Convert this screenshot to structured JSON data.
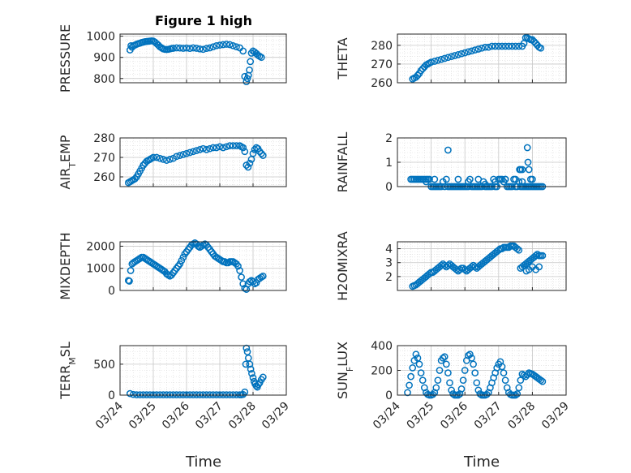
{
  "figure": {
    "title": "Figure 1 high",
    "marker_color": "#0072BD",
    "xticks": [
      "03/24",
      "03/25",
      "03/26",
      "03/27",
      "03/28",
      "03/29"
    ],
    "xlabel": "Time"
  },
  "chart_data": [
    {
      "type": "scatter",
      "ylabel_main": "PRESSURE",
      "ylabel_sub": "",
      "xlim": [
        0,
        5
      ],
      "ylim": [
        780,
        1010
      ],
      "yticks": [
        800,
        900,
        1000
      ],
      "x": [
        0.3,
        0.33,
        0.36,
        0.4,
        0.45,
        0.5,
        0.55,
        0.6,
        0.65,
        0.7,
        0.75,
        0.8,
        0.85,
        0.9,
        0.95,
        1.0,
        1.05,
        1.1,
        1.15,
        1.2,
        1.25,
        1.3,
        1.35,
        1.4,
        1.45,
        1.5,
        1.55,
        1.6,
        1.7,
        1.8,
        1.9,
        2.0,
        2.1,
        2.2,
        2.3,
        2.4,
        2.5,
        2.6,
        2.7,
        2.8,
        2.9,
        3.0,
        3.1,
        3.2,
        3.3,
        3.4,
        3.5,
        3.6,
        3.7,
        3.75,
        3.8,
        3.83,
        3.86,
        3.89,
        3.92,
        3.95,
        4.0,
        4.05,
        4.1,
        4.15,
        4.2,
        4.25
      ],
      "y": [
        935,
        955,
        948,
        955,
        958,
        962,
        965,
        967,
        970,
        972,
        974,
        975,
        976,
        977,
        978,
        977,
        972,
        965,
        958,
        950,
        945,
        940,
        938,
        937,
        938,
        940,
        942,
        943,
        945,
        944,
        943,
        944,
        942,
        945,
        943,
        940,
        938,
        942,
        945,
        950,
        955,
        958,
        960,
        962,
        960,
        955,
        950,
        945,
        930,
        810,
        785,
        800,
        815,
        840,
        880,
        920,
        930,
        925,
        918,
        910,
        905,
        900
      ]
    },
    {
      "type": "scatter",
      "ylabel_main": "THETA",
      "ylabel_sub": "",
      "xlim": [
        0,
        5
      ],
      "ylim": [
        260,
        286
      ],
      "yticks": [
        260,
        270,
        280
      ],
      "x": [
        0.45,
        0.5,
        0.55,
        0.6,
        0.65,
        0.7,
        0.75,
        0.8,
        0.85,
        0.9,
        0.95,
        1.0,
        1.1,
        1.2,
        1.3,
        1.4,
        1.5,
        1.6,
        1.7,
        1.8,
        1.9,
        2.0,
        2.1,
        2.2,
        2.3,
        2.4,
        2.5,
        2.6,
        2.7,
        2.8,
        2.9,
        3.0,
        3.1,
        3.2,
        3.3,
        3.4,
        3.5,
        3.6,
        3.7,
        3.75,
        3.8,
        3.85,
        3.9,
        3.95,
        4.0,
        4.05,
        4.1,
        4.15,
        4.2,
        4.25
      ],
      "y": [
        262,
        262.5,
        263,
        264,
        265,
        266.5,
        267.5,
        268.5,
        269.5,
        270,
        270.5,
        271,
        271.5,
        272,
        272.5,
        273,
        273.5,
        274,
        274.5,
        275,
        275.5,
        276,
        276.5,
        277,
        277.5,
        278,
        278.5,
        279,
        279,
        279.5,
        279.5,
        279.5,
        279.5,
        279.5,
        279.5,
        279.5,
        279.5,
        279.5,
        279.5,
        281,
        284,
        284,
        283.5,
        283,
        283,
        282,
        281,
        280,
        279,
        278.5
      ]
    },
    {
      "type": "scatter",
      "ylabel_main": "AIR",
      "ylabel_sub": "T",
      "ylabel_rest": "EMP",
      "xlim": [
        0,
        5
      ],
      "ylim": [
        255,
        280
      ],
      "yticks": [
        260,
        270,
        280
      ],
      "x": [
        0.25,
        0.3,
        0.35,
        0.4,
        0.45,
        0.5,
        0.55,
        0.6,
        0.65,
        0.7,
        0.75,
        0.8,
        0.85,
        0.9,
        0.95,
        1.0,
        1.1,
        1.2,
        1.3,
        1.4,
        1.5,
        1.6,
        1.7,
        1.8,
        1.9,
        2.0,
        2.1,
        2.2,
        2.3,
        2.4,
        2.5,
        2.6,
        2.7,
        2.8,
        2.9,
        3.0,
        3.1,
        3.2,
        3.3,
        3.4,
        3.5,
        3.6,
        3.65,
        3.7,
        3.75,
        3.8,
        3.85,
        3.9,
        3.95,
        4.0,
        4.05,
        4.1,
        4.15,
        4.2,
        4.25,
        4.3
      ],
      "y": [
        257,
        257.5,
        258,
        258.5,
        259,
        260,
        261.5,
        263,
        264.5,
        266,
        267,
        268,
        268.5,
        269,
        269.5,
        270,
        270,
        269.5,
        269,
        268.5,
        269,
        269.5,
        270.5,
        271,
        271.5,
        272,
        272.5,
        273,
        273.5,
        274,
        274.5,
        274,
        274.5,
        275,
        275,
        275.5,
        275,
        275.5,
        276,
        276,
        276,
        276,
        275.5,
        275,
        273,
        266,
        265,
        267,
        269,
        272,
        274,
        275,
        274.5,
        273,
        272,
        271
      ]
    },
    {
      "type": "scatter",
      "ylabel_main": "RAINFALL",
      "ylabel_sub": "",
      "xlim": [
        0,
        5
      ],
      "ylim": [
        0,
        2
      ],
      "yticks": [
        0,
        1,
        2
      ],
      "x": [
        0.4,
        0.45,
        0.5,
        0.55,
        0.6,
        0.65,
        0.7,
        0.75,
        0.8,
        0.85,
        0.9,
        0.95,
        1.0,
        1.05,
        1.1,
        1.15,
        1.2,
        1.25,
        1.3,
        1.35,
        1.4,
        1.45,
        1.5,
        1.55,
        1.6,
        1.65,
        1.7,
        1.75,
        1.8,
        1.85,
        1.9,
        1.95,
        2.0,
        2.05,
        2.1,
        2.15,
        2.2,
        2.25,
        2.3,
        2.35,
        2.4,
        2.45,
        2.5,
        2.55,
        2.6,
        2.65,
        2.7,
        2.75,
        2.8,
        2.85,
        2.9,
        2.95,
        3.0,
        3.05,
        3.1,
        3.15,
        3.2,
        3.25,
        3.3,
        3.35,
        3.4,
        3.45,
        3.5,
        3.55,
        3.6,
        3.65,
        3.7,
        3.75,
        3.8,
        3.85,
        3.9,
        3.95,
        4.0,
        4.05,
        4.1,
        4.15,
        4.2,
        4.25,
        4.3,
        0.85,
        1.1,
        1.5,
        1.8,
        2.1,
        2.4,
        2.6,
        2.9,
        3.2,
        3.5,
        3.7,
        3.62,
        3.65,
        3.7,
        3.85,
        3.87,
        3.9,
        3.95,
        4.0
      ],
      "y": [
        0.3,
        0.3,
        0.3,
        0.3,
        0.3,
        0.3,
        0.3,
        0.3,
        0.3,
        0.3,
        0.3,
        0.3,
        0,
        0,
        0,
        0,
        0,
        0,
        0,
        0.2,
        0,
        0.3,
        0,
        0,
        0,
        0,
        0,
        0,
        0,
        0,
        0,
        0,
        0,
        0,
        0,
        0.3,
        0,
        0,
        0,
        0,
        0,
        0,
        0,
        0.2,
        0,
        0,
        0,
        0,
        0,
        0.3,
        0,
        0,
        0.3,
        0.3,
        0.3,
        0.2,
        0.3,
        0,
        0,
        0,
        0,
        0.3,
        0,
        0,
        0.2,
        0,
        0,
        0,
        0,
        0,
        0,
        0,
        0,
        0,
        0,
        0,
        0,
        0,
        0,
        0.2,
        0.3,
        1.5,
        0.3,
        0.2,
        0.3,
        0.1,
        0.2,
        0.3,
        0.3,
        0.2,
        0.7,
        0.7,
        0.7,
        1.6,
        1.0,
        0.7,
        0.3,
        0.3
      ]
    },
    {
      "type": "scatter",
      "ylabel_main": "MIXDEPTH",
      "ylabel_sub": "",
      "xlim": [
        0,
        5
      ],
      "ylim": [
        0,
        2200
      ],
      "yticks": [
        0,
        1000,
        2000
      ],
      "x": [
        0.25,
        0.28,
        0.32,
        0.36,
        0.4,
        0.45,
        0.5,
        0.55,
        0.6,
        0.65,
        0.7,
        0.75,
        0.8,
        0.85,
        0.9,
        0.95,
        1.0,
        1.05,
        1.1,
        1.15,
        1.2,
        1.25,
        1.3,
        1.35,
        1.4,
        1.45,
        1.5,
        1.55,
        1.6,
        1.65,
        1.7,
        1.75,
        1.8,
        1.85,
        1.9,
        1.95,
        2.0,
        2.05,
        2.1,
        2.15,
        2.2,
        2.25,
        2.3,
        2.35,
        2.4,
        2.45,
        2.5,
        2.55,
        2.6,
        2.65,
        2.7,
        2.75,
        2.8,
        2.85,
        2.9,
        2.95,
        3.0,
        3.05,
        3.1,
        3.15,
        3.2,
        3.25,
        3.3,
        3.35,
        3.4,
        3.45,
        3.5,
        3.55,
        3.6,
        3.65,
        3.7,
        3.75,
        3.8,
        3.85,
        3.9,
        3.95,
        4.0,
        4.05,
        4.1,
        4.15,
        4.2,
        4.25,
        4.3
      ],
      "y": [
        450,
        420,
        900,
        1200,
        1250,
        1300,
        1350,
        1400,
        1450,
        1500,
        1500,
        1450,
        1400,
        1350,
        1300,
        1250,
        1200,
        1150,
        1100,
        1050,
        1000,
        950,
        900,
        850,
        750,
        700,
        650,
        700,
        800,
        900,
        1000,
        1100,
        1200,
        1350,
        1500,
        1650,
        1750,
        1850,
        1950,
        2050,
        2100,
        2150,
        2100,
        2000,
        1950,
        2000,
        2050,
        2100,
        2050,
        1950,
        1850,
        1750,
        1650,
        1550,
        1500,
        1450,
        1400,
        1350,
        1300,
        1300,
        1250,
        1250,
        1300,
        1300,
        1300,
        1250,
        1200,
        1100,
        900,
        600,
        300,
        100,
        50,
        300,
        400,
        450,
        400,
        300,
        350,
        500,
        550,
        600,
        650
      ]
    },
    {
      "type": "scatter",
      "ylabel_main": "H2OMIXRA",
      "ylabel_sub": "",
      "xlim": [
        0,
        5
      ],
      "ylim": [
        1,
        4.5
      ],
      "yticks": [
        2,
        3,
        4
      ],
      "x": [
        0.45,
        0.5,
        0.55,
        0.6,
        0.65,
        0.7,
        0.75,
        0.8,
        0.85,
        0.9,
        0.95,
        1.0,
        1.05,
        1.1,
        1.15,
        1.2,
        1.25,
        1.3,
        1.35,
        1.4,
        1.45,
        1.5,
        1.55,
        1.6,
        1.65,
        1.7,
        1.75,
        1.8,
        1.85,
        1.9,
        1.95,
        2.0,
        2.05,
        2.1,
        2.15,
        2.2,
        2.25,
        2.3,
        2.35,
        2.4,
        2.45,
        2.5,
        2.55,
        2.6,
        2.65,
        2.7,
        2.75,
        2.8,
        2.85,
        2.9,
        2.95,
        3.0,
        3.05,
        3.1,
        3.15,
        3.2,
        3.25,
        3.3,
        3.35,
        3.4,
        3.45,
        3.5,
        3.55,
        3.6,
        3.65,
        3.7,
        3.75,
        3.8,
        3.85,
        3.9,
        3.95,
        4.0,
        4.05,
        4.1,
        4.15,
        4.2,
        4.25,
        4.3,
        3.82,
        3.9,
        4.0,
        4.1,
        4.2
      ],
      "y": [
        1.3,
        1.35,
        1.4,
        1.5,
        1.6,
        1.7,
        1.8,
        1.9,
        2.0,
        2.1,
        2.2,
        2.3,
        2.3,
        2.4,
        2.5,
        2.6,
        2.7,
        2.8,
        2.9,
        2.8,
        2.7,
        2.8,
        2.9,
        2.8,
        2.7,
        2.6,
        2.5,
        2.4,
        2.5,
        2.6,
        2.6,
        2.5,
        2.4,
        2.5,
        2.6,
        2.7,
        2.8,
        2.7,
        2.6,
        2.7,
        2.8,
        2.9,
        3.0,
        3.1,
        3.2,
        3.3,
        3.4,
        3.5,
        3.6,
        3.7,
        3.8,
        3.9,
        4.0,
        4.0,
        4.1,
        4.1,
        4.1,
        4.1,
        4.2,
        4.2,
        4.2,
        4.1,
        4.0,
        3.9,
        2.6,
        2.7,
        2.8,
        2.9,
        3.0,
        3.1,
        3.2,
        3.3,
        3.4,
        3.5,
        3.6,
        3.5,
        3.5,
        3.5,
        2.4,
        2.5,
        2.7,
        2.5,
        2.7
      ]
    },
    {
      "type": "scatter",
      "ylabel_main": "TERR",
      "ylabel_sub": "M",
      "ylabel_rest": "SL",
      "xlim": [
        0,
        5
      ],
      "ylim": [
        0,
        800
      ],
      "yticks": [
        0,
        500
      ],
      "x": [
        0.3,
        0.4,
        0.5,
        0.6,
        0.7,
        0.8,
        0.9,
        1.0,
        1.1,
        1.2,
        1.3,
        1.4,
        1.5,
        1.6,
        1.7,
        1.8,
        1.9,
        2.0,
        2.1,
        2.2,
        2.3,
        2.4,
        2.5,
        2.6,
        2.7,
        2.8,
        2.9,
        3.0,
        3.1,
        3.2,
        3.3,
        3.4,
        3.5,
        3.6,
        3.65,
        3.7,
        3.75,
        3.78,
        3.8,
        3.83,
        3.86,
        3.9,
        3.93,
        3.96,
        4.0,
        4.03,
        4.06,
        4.1,
        4.13,
        4.16,
        4.2,
        4.25,
        4.3
      ],
      "y": [
        25,
        10,
        5,
        5,
        5,
        5,
        5,
        5,
        5,
        5,
        5,
        5,
        5,
        5,
        5,
        5,
        5,
        5,
        5,
        5,
        5,
        5,
        5,
        5,
        5,
        5,
        5,
        5,
        5,
        5,
        5,
        5,
        5,
        5,
        5,
        10,
        50,
        500,
        760,
        700,
        600,
        500,
        420,
        350,
        280,
        220,
        180,
        150,
        130,
        170,
        200,
        250,
        290
      ]
    },
    {
      "type": "scatter",
      "ylabel_main": "SUN",
      "ylabel_sub": "F",
      "ylabel_rest": "LUX",
      "xlim": [
        0,
        5
      ],
      "ylim": [
        0,
        400
      ],
      "yticks": [
        0,
        200,
        400
      ],
      "x": [
        0.3,
        0.35,
        0.4,
        0.45,
        0.5,
        0.55,
        0.6,
        0.65,
        0.7,
        0.75,
        0.8,
        0.85,
        0.9,
        0.95,
        1.0,
        1.05,
        1.1,
        1.15,
        1.2,
        1.25,
        1.3,
        1.35,
        1.4,
        1.45,
        1.5,
        1.55,
        1.6,
        1.65,
        1.7,
        1.75,
        1.8,
        1.85,
        1.9,
        1.95,
        2.0,
        2.05,
        2.1,
        2.15,
        2.2,
        2.25,
        2.3,
        2.35,
        2.4,
        2.45,
        2.5,
        2.55,
        2.6,
        2.65,
        2.7,
        2.75,
        2.8,
        2.85,
        2.9,
        2.95,
        3.0,
        3.05,
        3.1,
        3.15,
        3.2,
        3.25,
        3.3,
        3.35,
        3.4,
        3.45,
        3.5,
        3.55,
        3.6,
        3.65,
        3.7,
        3.75,
        3.8,
        3.85,
        3.9,
        3.95,
        4.0,
        4.05,
        4.1,
        4.15,
        4.2,
        4.25,
        4.3
      ],
      "y": [
        20,
        80,
        150,
        220,
        280,
        330,
        300,
        250,
        180,
        120,
        60,
        20,
        5,
        0,
        0,
        5,
        20,
        60,
        120,
        200,
        280,
        300,
        310,
        250,
        180,
        100,
        40,
        10,
        0,
        0,
        0,
        10,
        50,
        120,
        200,
        280,
        320,
        330,
        300,
        250,
        180,
        100,
        40,
        10,
        0,
        0,
        0,
        5,
        20,
        60,
        100,
        140,
        180,
        220,
        250,
        270,
        230,
        180,
        120,
        60,
        20,
        5,
        0,
        0,
        0,
        10,
        60,
        120,
        170,
        160,
        150,
        165,
        180,
        175,
        170,
        160,
        150,
        140,
        130,
        120,
        110
      ]
    }
  ]
}
